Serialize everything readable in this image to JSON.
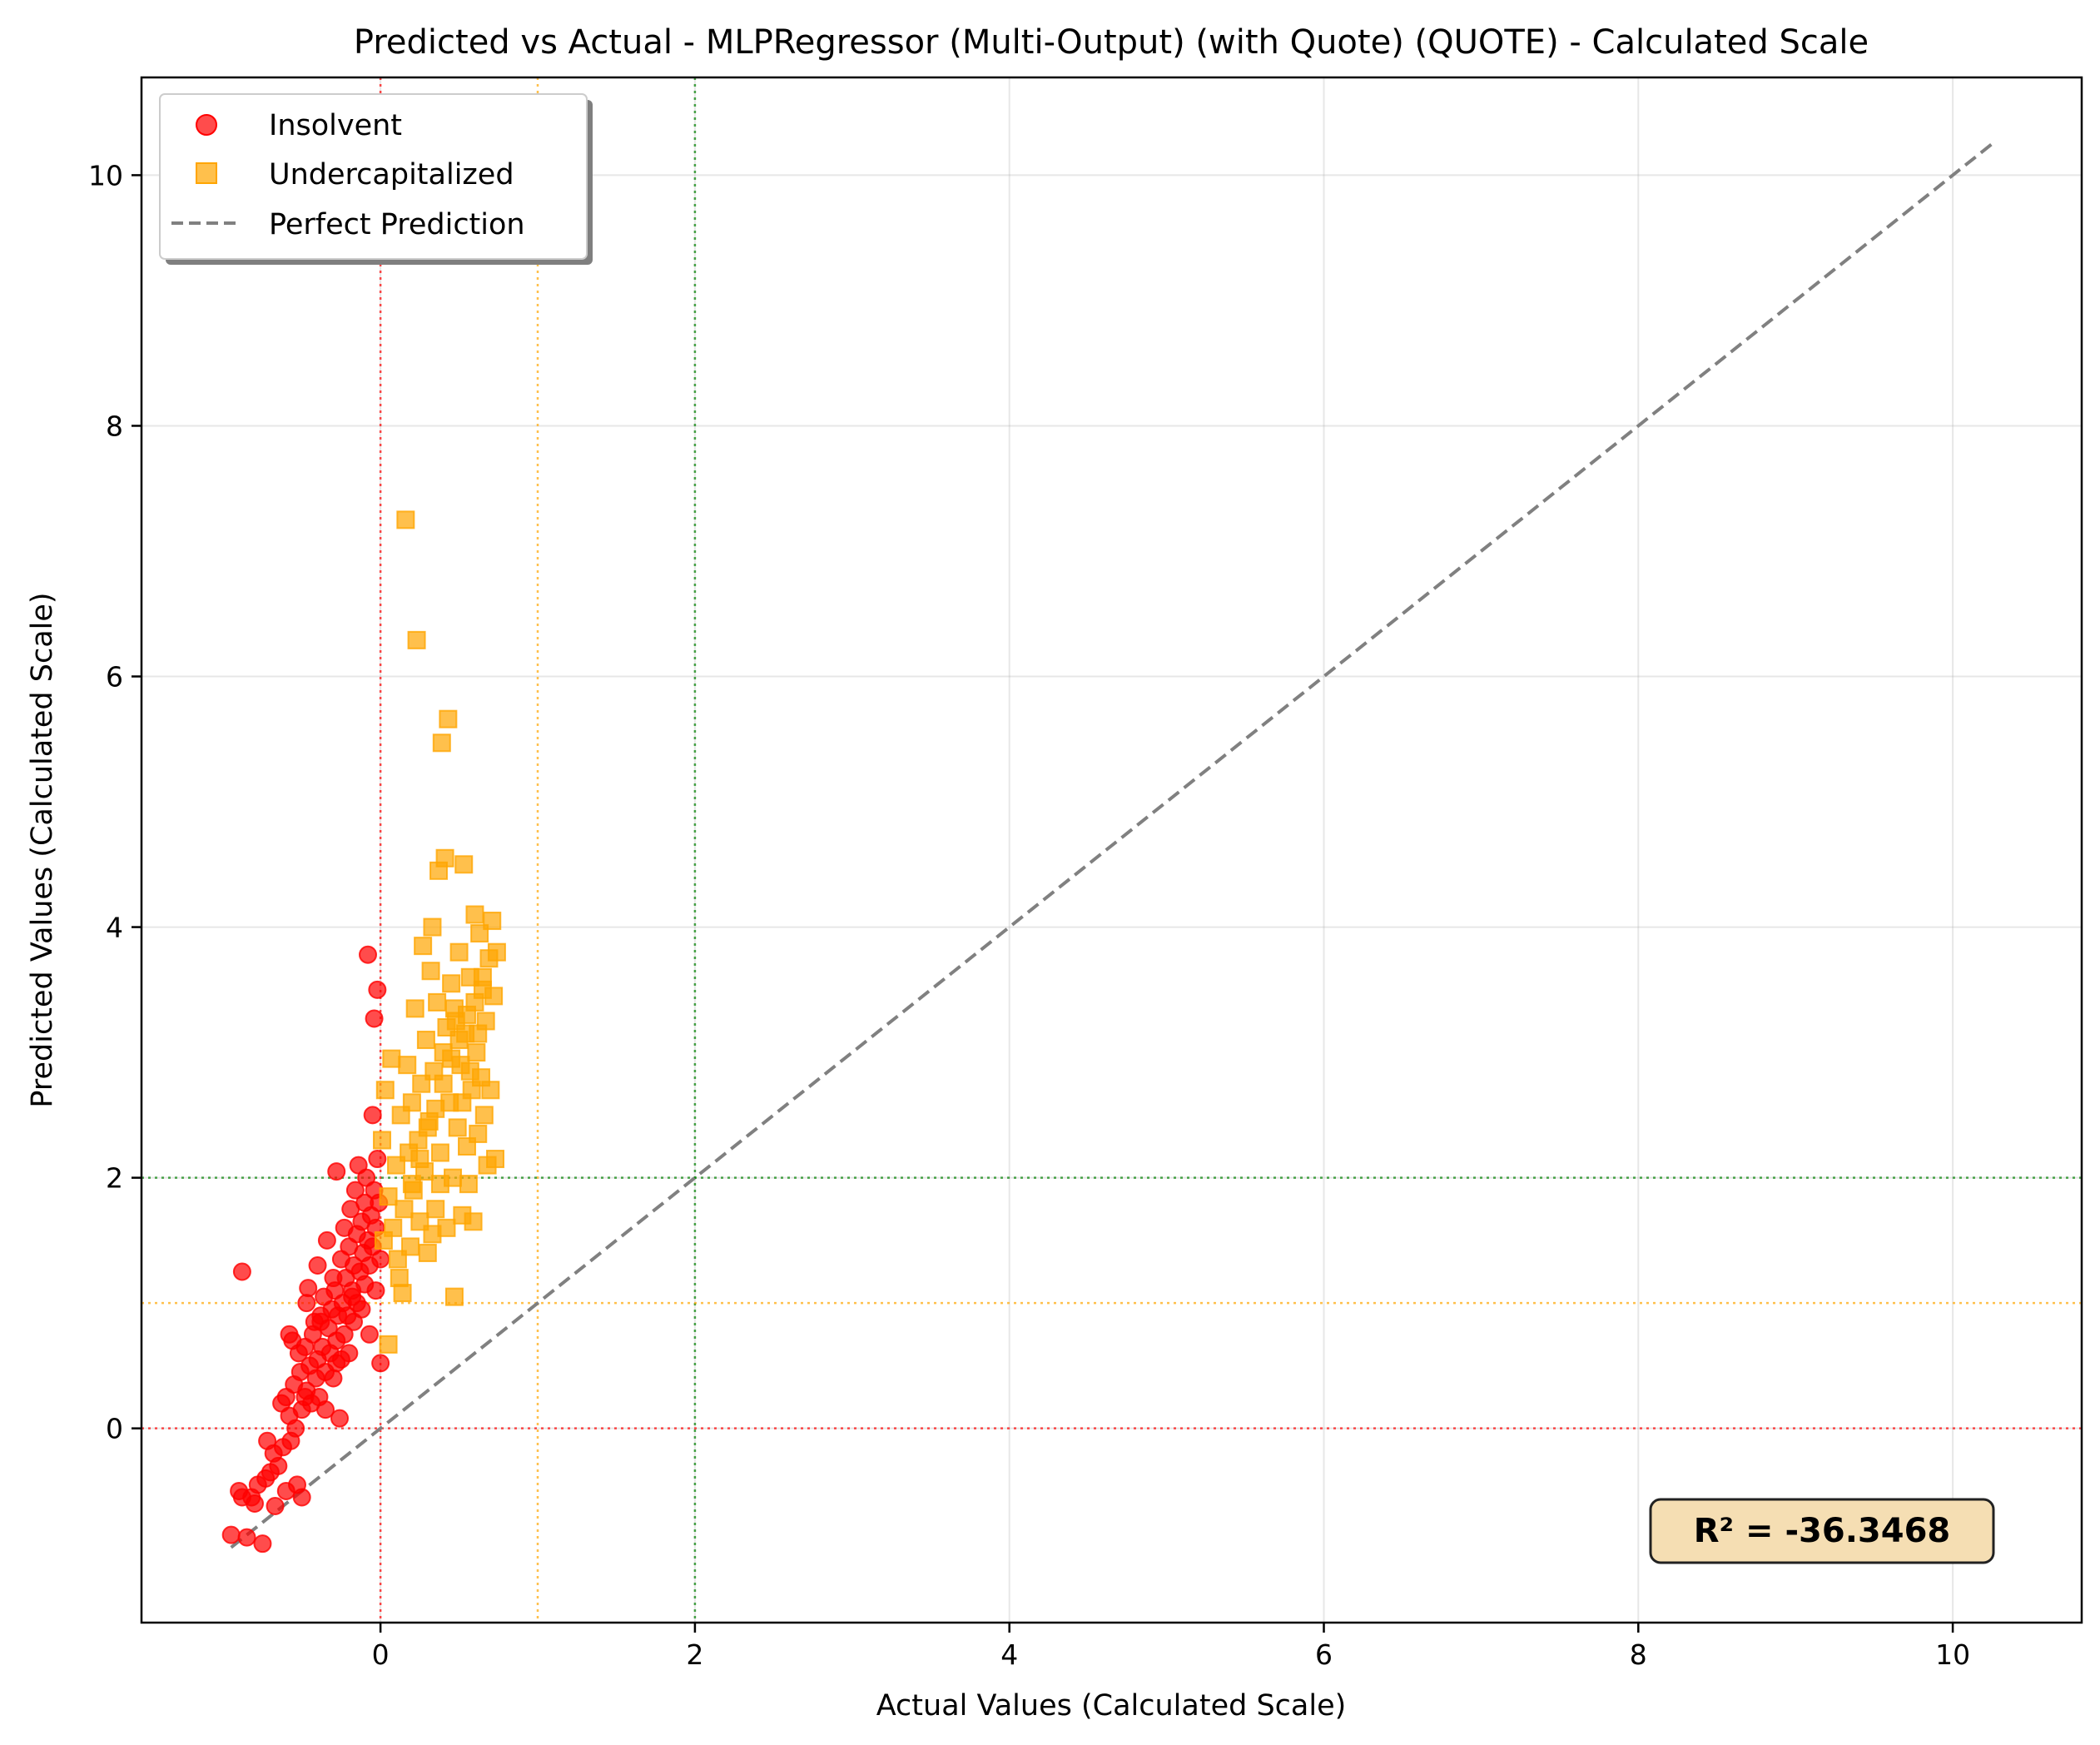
{
  "chart_data": {
    "type": "scatter",
    "title": "Predicted vs Actual - MLPRegressor (Multi-Output) (with Quote) (QUOTE) - Calculated Scale",
    "xlabel": "Actual Values (Calculated Scale)",
    "ylabel": "Predicted Values (Calculated Scale)",
    "xlim": [
      -1.52,
      10.82
    ],
    "ylim": [
      -1.55,
      10.78
    ],
    "x_ticks": [
      0,
      2,
      4,
      6,
      8,
      10
    ],
    "y_ticks": [
      0,
      2,
      4,
      6,
      8,
      10
    ],
    "grid": true,
    "legend_position": "top-left",
    "legend": [
      {
        "label": "Insolvent",
        "marker": "circle",
        "color": "#ff0000"
      },
      {
        "label": "Undercapitalized",
        "marker": "square",
        "color": "#ffa500"
      },
      {
        "label": "Perfect Prediction",
        "marker": "dashed-line",
        "color": "#808080"
      }
    ],
    "reference_lines": [
      {
        "orientation": "vertical",
        "value": 0,
        "color": "#ff0000",
        "style": "dotted"
      },
      {
        "orientation": "vertical",
        "value": 1,
        "color": "#ffa500",
        "style": "dotted"
      },
      {
        "orientation": "vertical",
        "value": 2,
        "color": "#008000",
        "style": "dotted"
      },
      {
        "orientation": "horizontal",
        "value": 0,
        "color": "#ff0000",
        "style": "dotted"
      },
      {
        "orientation": "horizontal",
        "value": 1,
        "color": "#ffa500",
        "style": "dotted"
      },
      {
        "orientation": "horizontal",
        "value": 2,
        "color": "#008000",
        "style": "dotted"
      }
    ],
    "perfect_prediction_line": {
      "from": [
        -0.95,
        -0.95
      ],
      "to": [
        10.25,
        10.25
      ],
      "color": "#808080"
    },
    "annotation": {
      "text": "R² = -36.3468",
      "box_color": "#f5deb3"
    },
    "series": [
      {
        "name": "Insolvent",
        "marker": "circle",
        "color": "#ff0000",
        "points": [
          [
            -0.95,
            -0.85
          ],
          [
            -0.9,
            -0.5
          ],
          [
            -0.88,
            -0.55
          ],
          [
            -0.85,
            -0.87
          ],
          [
            -0.82,
            -0.55
          ],
          [
            -0.8,
            -0.6
          ],
          [
            -0.78,
            -0.45
          ],
          [
            -0.75,
            -0.92
          ],
          [
            -0.73,
            -0.4
          ],
          [
            -0.72,
            -0.1
          ],
          [
            -0.7,
            -0.35
          ],
          [
            -0.68,
            -0.2
          ],
          [
            -0.67,
            -0.62
          ],
          [
            -0.65,
            -0.3
          ],
          [
            -0.63,
            0.2
          ],
          [
            -0.62,
            -0.15
          ],
          [
            -0.6,
            0.25
          ],
          [
            -0.6,
            -0.5
          ],
          [
            -0.58,
            0.1
          ],
          [
            -0.57,
            -0.1
          ],
          [
            -0.56,
            0.7
          ],
          [
            -0.55,
            0.35
          ],
          [
            -0.54,
            0.0
          ],
          [
            -0.53,
            -0.45
          ],
          [
            -0.52,
            0.6
          ],
          [
            -0.51,
            0.45
          ],
          [
            -0.5,
            0.15
          ],
          [
            -0.5,
            -0.55
          ],
          [
            -0.48,
            0.65
          ],
          [
            -0.47,
            1.0
          ],
          [
            -0.47,
            0.3
          ],
          [
            -0.46,
            1.12
          ],
          [
            -0.45,
            0.5
          ],
          [
            -0.44,
            0.2
          ],
          [
            -0.43,
            0.75
          ],
          [
            -0.42,
            0.85
          ],
          [
            -0.41,
            0.4
          ],
          [
            -0.4,
            1.3
          ],
          [
            -0.4,
            0.55
          ],
          [
            -0.39,
            0.25
          ],
          [
            -0.38,
            0.9
          ],
          [
            -0.37,
            0.65
          ],
          [
            -0.36,
            1.05
          ],
          [
            -0.35,
            0.45
          ],
          [
            -0.35,
            0.15
          ],
          [
            -0.34,
            1.5
          ],
          [
            -0.33,
            0.8
          ],
          [
            -0.32,
            0.6
          ],
          [
            -0.31,
            0.95
          ],
          [
            -0.3,
            1.2
          ],
          [
            -0.3,
            0.4
          ],
          [
            -0.29,
            1.1
          ],
          [
            -0.28,
            0.7
          ],
          [
            -0.28,
            2.05
          ],
          [
            -0.27,
            0.9
          ],
          [
            -0.26,
            0.08
          ],
          [
            -0.25,
            1.35
          ],
          [
            -0.25,
            0.55
          ],
          [
            -0.24,
            1.0
          ],
          [
            -0.23,
            1.6
          ],
          [
            -0.23,
            0.75
          ],
          [
            -0.22,
            1.2
          ],
          [
            -0.21,
            0.9
          ],
          [
            -0.2,
            1.45
          ],
          [
            -0.2,
            0.6
          ],
          [
            -0.19,
            1.75
          ],
          [
            -0.18,
            1.1
          ],
          [
            -0.17,
            0.85
          ],
          [
            -0.17,
            1.3
          ],
          [
            -0.16,
            1.9
          ],
          [
            -0.15,
            1.55
          ],
          [
            -0.15,
            1.0
          ],
          [
            -0.14,
            2.1
          ],
          [
            -0.13,
            1.25
          ],
          [
            -0.12,
            1.65
          ],
          [
            -0.12,
            0.95
          ],
          [
            -0.11,
            1.4
          ],
          [
            -0.1,
            1.8
          ],
          [
            -0.1,
            1.15
          ],
          [
            -0.09,
            2.0
          ],
          [
            -0.08,
            1.5
          ],
          [
            -0.08,
            3.78
          ],
          [
            -0.07,
            1.3
          ],
          [
            -0.07,
            0.75
          ],
          [
            -0.06,
            1.7
          ],
          [
            -0.05,
            2.5
          ],
          [
            -0.05,
            1.45
          ],
          [
            -0.04,
            1.9
          ],
          [
            -0.04,
            3.27
          ],
          [
            -0.03,
            1.6
          ],
          [
            -0.03,
            1.1
          ],
          [
            -0.02,
            2.15
          ],
          [
            -0.02,
            3.5
          ],
          [
            -0.01,
            1.8
          ],
          [
            0.0,
            1.35
          ],
          [
            0.0,
            0.52
          ],
          [
            -0.88,
            1.25
          ],
          [
            -0.28,
            0.52
          ],
          [
            -0.48,
            0.25
          ],
          [
            -0.58,
            0.75
          ],
          [
            -0.38,
            0.85
          ],
          [
            -0.18,
            1.05
          ]
        ]
      },
      {
        "name": "Undercapitalized",
        "marker": "square",
        "color": "#ffa500",
        "points": [
          [
            0.01,
            2.3
          ],
          [
            0.02,
            1.5
          ],
          [
            0.03,
            2.7
          ],
          [
            0.05,
            1.85
          ],
          [
            0.05,
            0.67
          ],
          [
            0.07,
            2.95
          ],
          [
            0.08,
            1.6
          ],
          [
            0.1,
            2.1
          ],
          [
            0.11,
            1.35
          ],
          [
            0.13,
            2.5
          ],
          [
            0.14,
            1.08
          ],
          [
            0.15,
            1.75
          ],
          [
            0.16,
            7.25
          ],
          [
            0.17,
            2.9
          ],
          [
            0.18,
            2.2
          ],
          [
            0.19,
            1.45
          ],
          [
            0.2,
            2.6
          ],
          [
            0.21,
            1.9
          ],
          [
            0.22,
            3.35
          ],
          [
            0.23,
            6.29
          ],
          [
            0.24,
            2.3
          ],
          [
            0.25,
            1.65
          ],
          [
            0.26,
            2.75
          ],
          [
            0.27,
            3.85
          ],
          [
            0.28,
            2.05
          ],
          [
            0.29,
            3.1
          ],
          [
            0.3,
            1.4
          ],
          [
            0.31,
            2.45
          ],
          [
            0.32,
            3.65
          ],
          [
            0.33,
            4.0
          ],
          [
            0.34,
            2.85
          ],
          [
            0.35,
            1.75
          ],
          [
            0.36,
            3.4
          ],
          [
            0.37,
            4.45
          ],
          [
            0.38,
            2.2
          ],
          [
            0.39,
            5.47
          ],
          [
            0.4,
            3.0
          ],
          [
            0.41,
            4.55
          ],
          [
            0.42,
            1.6
          ],
          [
            0.43,
            5.66
          ],
          [
            0.44,
            2.6
          ],
          [
            0.45,
            3.55
          ],
          [
            0.46,
            2.0
          ],
          [
            0.47,
            1.05
          ],
          [
            0.48,
            3.25
          ],
          [
            0.49,
            2.4
          ],
          [
            0.5,
            3.8
          ],
          [
            0.51,
            2.9
          ],
          [
            0.52,
            1.7
          ],
          [
            0.53,
            4.5
          ],
          [
            0.54,
            3.15
          ],
          [
            0.55,
            2.25
          ],
          [
            0.56,
            1.95
          ],
          [
            0.57,
            3.6
          ],
          [
            0.58,
            2.7
          ],
          [
            0.59,
            1.65
          ],
          [
            0.6,
            4.1
          ],
          [
            0.61,
            3.0
          ],
          [
            0.62,
            2.35
          ],
          [
            0.63,
            3.95
          ],
          [
            0.64,
            2.8
          ],
          [
            0.65,
            3.5
          ],
          [
            0.66,
            2.5
          ],
          [
            0.67,
            3.25
          ],
          [
            0.68,
            2.1
          ],
          [
            0.69,
            3.75
          ],
          [
            0.7,
            2.7
          ],
          [
            0.71,
            4.05
          ],
          [
            0.72,
            3.45
          ],
          [
            0.73,
            2.15
          ],
          [
            0.74,
            3.8
          ],
          [
            0.35,
            2.55
          ],
          [
            0.4,
            2.75
          ],
          [
            0.45,
            2.95
          ],
          [
            0.5,
            3.1
          ],
          [
            0.55,
            3.3
          ],
          [
            0.3,
            2.4
          ],
          [
            0.25,
            2.15
          ],
          [
            0.2,
            1.95
          ],
          [
            0.6,
            3.4
          ],
          [
            0.65,
            3.6
          ],
          [
            0.42,
            3.2
          ],
          [
            0.47,
            3.35
          ],
          [
            0.52,
            2.6
          ],
          [
            0.57,
            2.85
          ],
          [
            0.62,
            3.15
          ],
          [
            0.38,
            1.95
          ],
          [
            0.33,
            1.55
          ],
          [
            0.12,
            1.2
          ]
        ]
      }
    ]
  }
}
